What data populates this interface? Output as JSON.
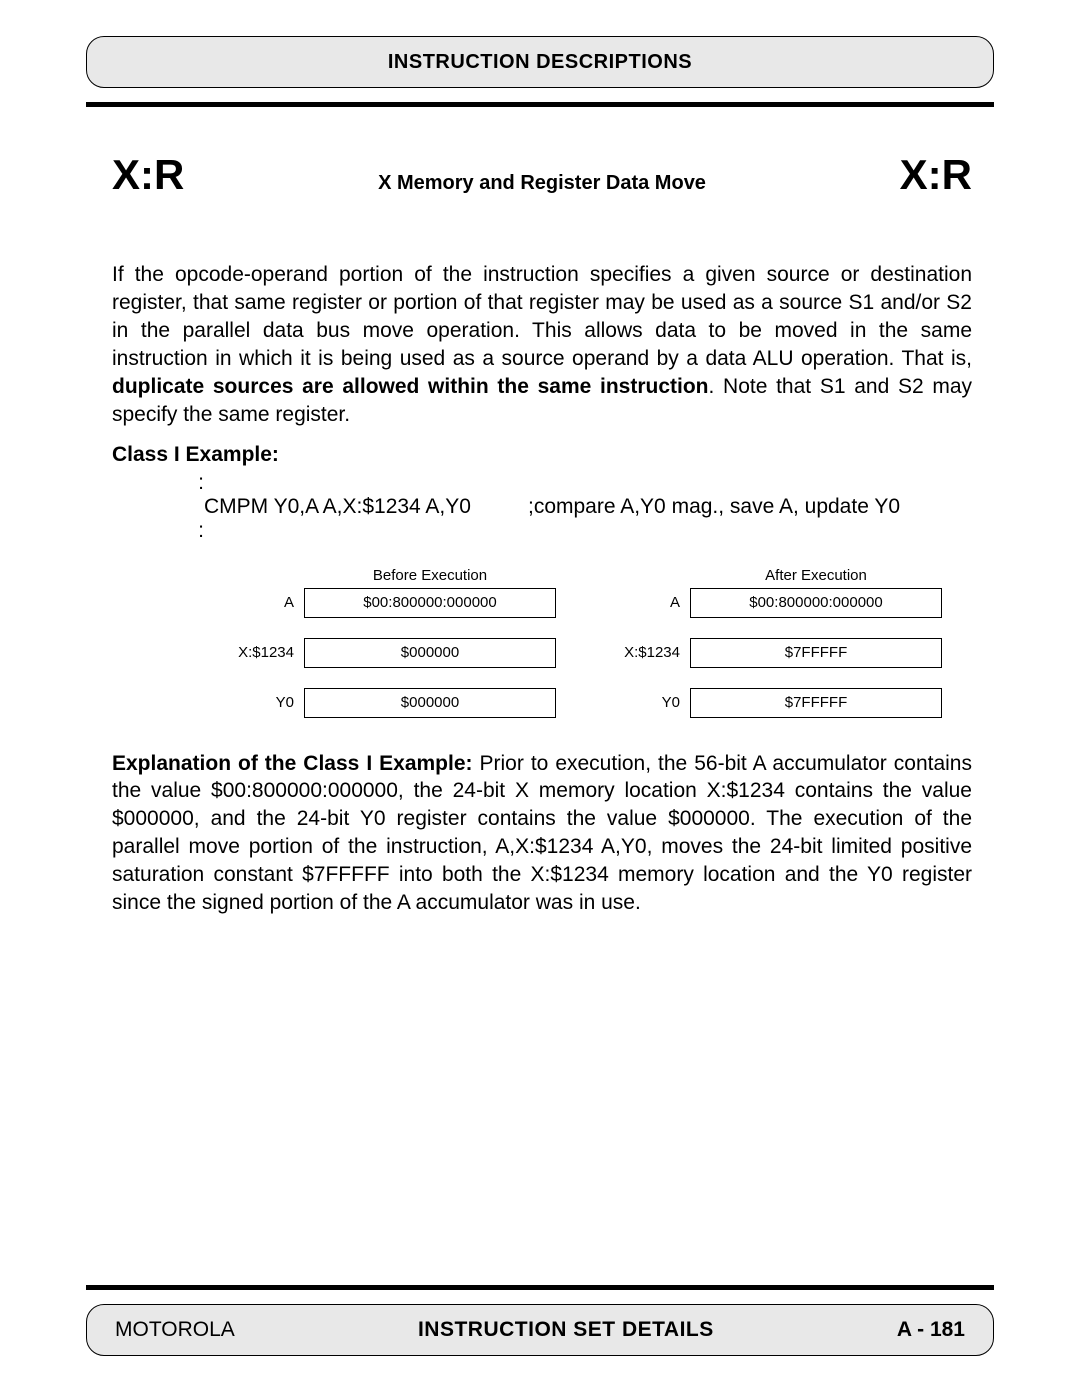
{
  "header": {
    "title": "INSTRUCTION DESCRIPTIONS"
  },
  "title_row": {
    "mnemonic_left": "X:R",
    "subtitle": "X Memory and Register Data Move",
    "mnemonic_right": "X:R"
  },
  "paragraph1": {
    "pre": "If the opcode-operand portion of the instruction specifies a given source or destination register, that same register or portion of that register may be used as a source S1 and/or S2 in the parallel data bus move operation. This allows data to be moved in the same instruction in which it is being used as a source operand by a data ALU operation. That is, ",
    "bold": "duplicate sources are allowed within the same instruction",
    "post": ". Note that S1 and S2 may specify the same register."
  },
  "class_label": "Class I Example:",
  "code": {
    "dots1": ":",
    "instr": "CMPM Y0,A A,X:$1234 A,Y0",
    "comment": ";compare A,Y0 mag., save A, update Y0",
    "dots2": ":"
  },
  "diagram": {
    "before": {
      "heading": "Before Execution",
      "rows": [
        {
          "label": "A",
          "value": "$00:800000:000000"
        },
        {
          "label": "X:$1234",
          "value": "$000000"
        },
        {
          "label": "Y0",
          "value": "$000000"
        }
      ]
    },
    "after": {
      "heading": "After Execution",
      "rows": [
        {
          "label": "A",
          "value": "$00:800000:000000"
        },
        {
          "label": "X:$1234",
          "value": "$7FFFFF"
        },
        {
          "label": "Y0",
          "value": "$7FFFFF"
        }
      ]
    }
  },
  "explanation": {
    "bold": "Explanation of the Class I Example:",
    "text": " Prior to execution, the 56-bit A accumulator contains the value $00:800000:000000, the 24-bit X memory location X:$1234 contains the value $000000, and the 24-bit Y0 register contains the value $000000. The execution of the parallel move portion of the instruction, A,X:$1234 A,Y0, moves the 24-bit limited positive saturation constant $7FFFFF into both the X:$1234 memory location and the Y0 register since the signed portion of the A accumulator was in use."
  },
  "footer": {
    "left": "MOTOROLA",
    "center": "INSTRUCTION SET DETAILS",
    "right": "A - 181"
  },
  "colors": {
    "background": "#ffffff",
    "text": "#000000",
    "box_fill": "#e8e8e8",
    "border": "#000000"
  }
}
